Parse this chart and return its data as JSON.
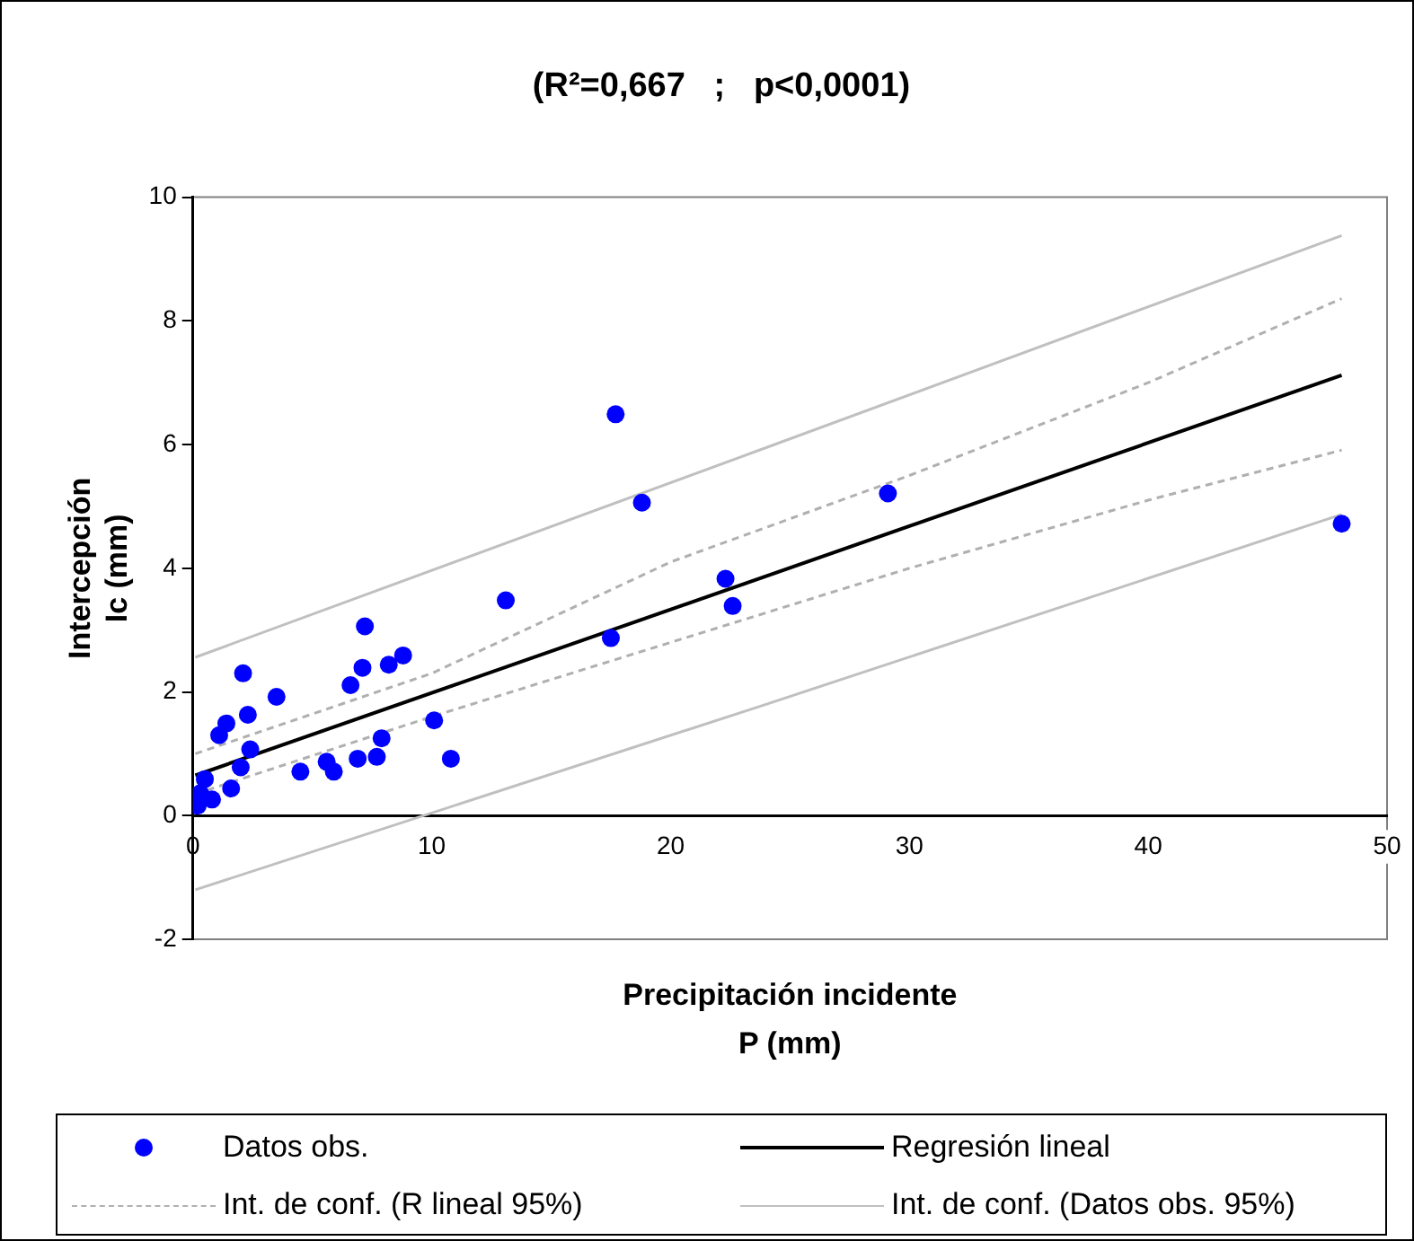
{
  "chart_data": {
    "type": "scatter",
    "title": "(R²=0,667   ;   p<0,0001)",
    "xlabel": "Precipitación incidente\nP (mm)",
    "ylabel": "Intercepción\nIc (mm)",
    "xlim": [
      0,
      50
    ],
    "xticks": [
      0,
      10,
      20,
      30,
      40,
      50
    ],
    "ylim": [
      -2,
      10
    ],
    "yticks": [
      -2,
      0,
      2,
      4,
      6,
      8,
      10
    ],
    "grid": false,
    "legend": "bottom",
    "series": [
      {
        "name": "Datos obs.",
        "marker": "circle",
        "color": "#0000ff",
        "x": [
          0.2,
          0.3,
          0.5,
          0.8,
          1.1,
          1.4,
          1.6,
          2.0,
          2.1,
          2.3,
          2.4,
          3.5,
          4.5,
          5.6,
          5.9,
          6.6,
          6.9,
          7.1,
          7.2,
          7.7,
          7.9,
          8.2,
          8.8,
          10.1,
          10.8,
          13.1,
          17.7,
          17.5,
          18.8,
          22.3,
          22.6,
          29.1,
          48.1
        ],
        "values": [
          0.16,
          0.36,
          0.59,
          0.26,
          1.3,
          1.49,
          0.44,
          0.78,
          2.3,
          1.63,
          1.07,
          1.92,
          0.71,
          0.87,
          0.71,
          2.11,
          0.92,
          2.39,
          3.06,
          0.95,
          1.25,
          2.44,
          2.59,
          1.54,
          0.92,
          3.48,
          6.49,
          2.87,
          5.06,
          3.83,
          3.39,
          5.21,
          4.72
        ]
      },
      {
        "name": "Regresión lineal",
        "type": "line",
        "line_style": "solid",
        "color": "#000000",
        "x": [
          0.1,
          48.1
        ],
        "values": [
          0.65,
          7.12
        ]
      },
      {
        "name": "Int. de conf. (R lineal 95%)",
        "type": "line",
        "line_style": "dashed",
        "color": "#b0b0b0",
        "x": [
          0.1,
          10,
          20,
          30,
          40,
          48.1
        ],
        "values": [
          1.0,
          2.3,
          4.1,
          5.5,
          7.0,
          8.36
        ]
      },
      {
        "type": "line",
        "line_style": "dashed",
        "color": "#b0b0b0",
        "x": [
          0.1,
          10,
          20,
          30,
          40,
          48.1
        ],
        "values": [
          0.35,
          1.6,
          2.8,
          4.0,
          5.1,
          5.91
        ]
      },
      {
        "name": "Int. de conf. (Datos obs. 95%)",
        "type": "line",
        "line_style": "solid",
        "color": "#c0c0c0",
        "x": [
          0.1,
          24,
          48.1
        ],
        "values": [
          2.56,
          5.95,
          9.38
        ]
      },
      {
        "type": "line",
        "line_style": "solid",
        "color": "#c0c0c0",
        "x": [
          0.1,
          24,
          48.1
        ],
        "values": [
          -1.2,
          1.8,
          4.87
        ]
      }
    ]
  }
}
